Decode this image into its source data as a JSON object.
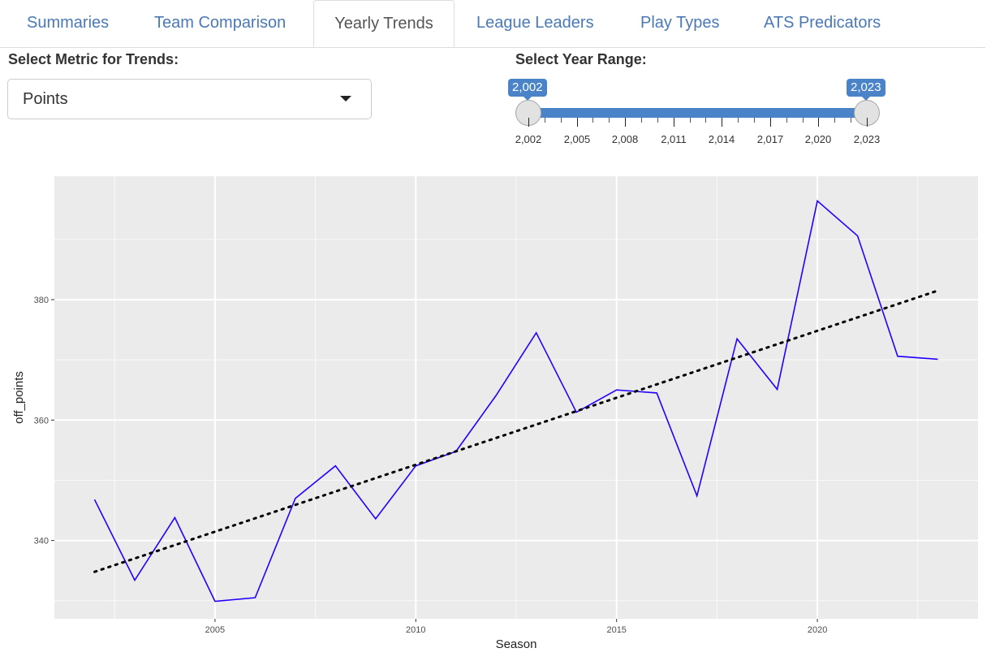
{
  "tabs": [
    {
      "label": "Summaries",
      "active": false
    },
    {
      "label": "Team Comparison",
      "active": false
    },
    {
      "label": "Yearly Trends",
      "active": true
    },
    {
      "label": "League Leaders",
      "active": false
    },
    {
      "label": "Play Types",
      "active": false
    },
    {
      "label": "ATS Predicators",
      "active": false
    }
  ],
  "metric": {
    "label": "Select Metric for Trends:",
    "value": "Points",
    "icon": "caret-down-icon"
  },
  "year_range": {
    "label": "Select Year Range:",
    "min": 2002,
    "max": 2023,
    "from": 2002,
    "to": 2023,
    "from_label": "2,002",
    "to_label": "2,023",
    "tick_labels": [
      "2,002",
      "2,005",
      "2,008",
      "2,011",
      "2,014",
      "2,017",
      "2,020",
      "2,023"
    ],
    "accent": "#4a83c8"
  },
  "chart_data": {
    "type": "line",
    "xlabel": "Season",
    "ylabel": "off_points",
    "xlim": [
      2001.0,
      2024.0
    ],
    "ylim": [
      327.0,
      400.5
    ],
    "x_ticks": [
      2005,
      2010,
      2015,
      2020
    ],
    "y_ticks": [
      340,
      360,
      380
    ],
    "grid": true,
    "background": "#ebebeb",
    "series": [
      {
        "style": "solid",
        "color": "#2200ff",
        "x": [
          2002,
          2003,
          2004,
          2005,
          2006,
          2007,
          2008,
          2009,
          2010,
          2011,
          2012,
          2013,
          2014,
          2015,
          2016,
          2017,
          2018,
          2019,
          2020,
          2021,
          2022,
          2023
        ],
        "y": [
          346.8,
          333.4,
          343.8,
          329.9,
          330.5,
          347.0,
          352.4,
          343.6,
          352.4,
          354.8,
          364.1,
          374.5,
          361.3,
          365.0,
          364.5,
          347.4,
          373.5,
          365.1,
          396.4,
          390.6,
          370.6,
          370.1
        ]
      },
      {
        "style": "dotted",
        "color": "#000000",
        "x": [
          2002,
          2023
        ],
        "y": [
          334.8,
          381.5
        ]
      }
    ]
  }
}
